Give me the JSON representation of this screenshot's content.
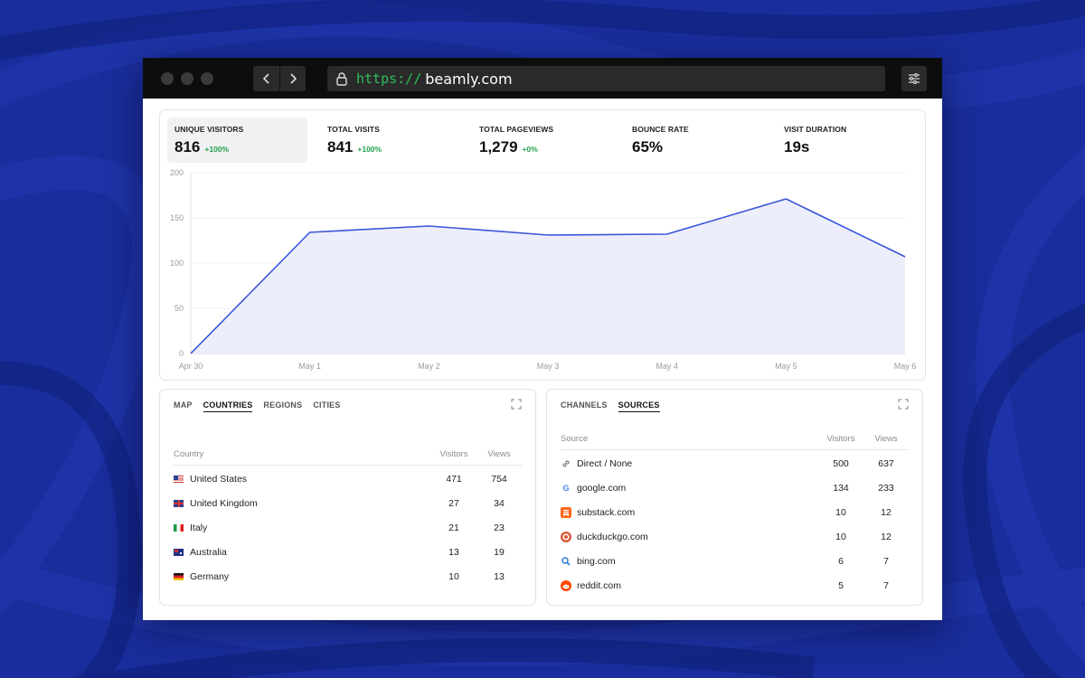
{
  "browser": {
    "url_scheme": "https://",
    "url_host": "beamly.com"
  },
  "stats": [
    {
      "label": "UNIQUE VISITORS",
      "value": "816",
      "delta": "+100%",
      "active": true
    },
    {
      "label": "TOTAL VISITS",
      "value": "841",
      "delta": "+100%"
    },
    {
      "label": "TOTAL PAGEVIEWS",
      "value": "1,279",
      "delta": "+0%"
    },
    {
      "label": "BOUNCE RATE",
      "value": "65%",
      "delta": ""
    },
    {
      "label": "VISIT DURATION",
      "value": "19s",
      "delta": ""
    }
  ],
  "chart_data": {
    "type": "area",
    "x": [
      "Apr 30",
      "May 1",
      "May 2",
      "May 3",
      "May 4",
      "May 5",
      "May 6"
    ],
    "series": [
      {
        "values": [
          0,
          134,
          141,
          131,
          132,
          171,
          107
        ]
      }
    ],
    "yticks": [
      "0",
      "50",
      "100",
      "150",
      "200"
    ],
    "ylim": [
      0,
      200
    ],
    "grid": true,
    "line_color": "#3b55d9",
    "fill_color": "#eceefc"
  },
  "countries_panel": {
    "tabs": [
      "MAP",
      "COUNTRIES",
      "REGIONS",
      "CITIES"
    ],
    "active_tab": "COUNTRIES",
    "headers": {
      "name": "Country",
      "visitors": "Visitors",
      "views": "Views"
    },
    "rows": [
      {
        "name": "United States",
        "flag": "us-flag",
        "visitors": "471",
        "views": "754"
      },
      {
        "name": "United Kingdom",
        "flag": "uk-flag",
        "visitors": "27",
        "views": "34"
      },
      {
        "name": "Italy",
        "flag": "italy-flag",
        "visitors": "21",
        "views": "23"
      },
      {
        "name": "Australia",
        "flag": "australia-flag",
        "visitors": "13",
        "views": "19"
      },
      {
        "name": "Germany",
        "flag": "germany-flag",
        "visitors": "10",
        "views": "13"
      }
    ]
  },
  "sources_panel": {
    "tabs": [
      "CHANNELS",
      "SOURCES"
    ],
    "active_tab": "SOURCES",
    "headers": {
      "name": "Source",
      "visitors": "Visitors",
      "views": "Views"
    },
    "rows": [
      {
        "name": "Direct / None",
        "icon": "link-icon",
        "visitors": "500",
        "views": "637"
      },
      {
        "name": "google.com",
        "icon": "google-icon",
        "visitors": "134",
        "views": "233"
      },
      {
        "name": "substack.com",
        "icon": "substack-icon",
        "visitors": "10",
        "views": "12"
      },
      {
        "name": "duckduckgo.com",
        "icon": "duckduckgo-icon",
        "visitors": "10",
        "views": "12"
      },
      {
        "name": "bing.com",
        "icon": "bing-icon",
        "visitors": "6",
        "views": "7"
      },
      {
        "name": "reddit.com",
        "icon": "reddit-icon",
        "visitors": "5",
        "views": "7"
      }
    ]
  }
}
